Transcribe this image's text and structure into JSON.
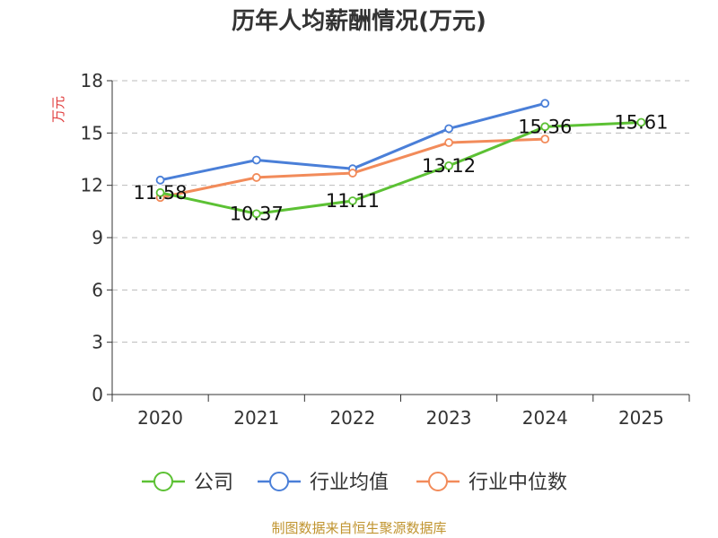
{
  "chart_data": {
    "type": "line",
    "title": "历年人均薪酬情况(万元)",
    "ylabel": "万元",
    "xlabel": "",
    "ylim": [
      0,
      18
    ],
    "yticks": [
      0,
      3,
      6,
      9,
      12,
      15,
      18
    ],
    "categories": [
      "2020",
      "2021",
      "2022",
      "2023",
      "2024",
      "2025"
    ],
    "grid": true,
    "legend_position": "bottom",
    "series": [
      {
        "name": "公司",
        "color": "#5cc134",
        "values": [
          11.58,
          10.37,
          11.11,
          13.12,
          15.36,
          15.61
        ],
        "labeled": true
      },
      {
        "name": "行业均值",
        "color": "#4a7fd8",
        "values": [
          12.3,
          13.45,
          12.95,
          15.25,
          16.7,
          null
        ],
        "labeled": false
      },
      {
        "name": "行业中位数",
        "color": "#f28b5a",
        "values": [
          11.3,
          12.45,
          12.7,
          14.45,
          14.65,
          null
        ],
        "labeled": false
      }
    ],
    "data_labels": [
      "11.58",
      "10.37",
      "11.11",
      "13.12",
      "15.36",
      "15.61"
    ]
  },
  "footer": "制图数据来自恒生聚源数据库"
}
